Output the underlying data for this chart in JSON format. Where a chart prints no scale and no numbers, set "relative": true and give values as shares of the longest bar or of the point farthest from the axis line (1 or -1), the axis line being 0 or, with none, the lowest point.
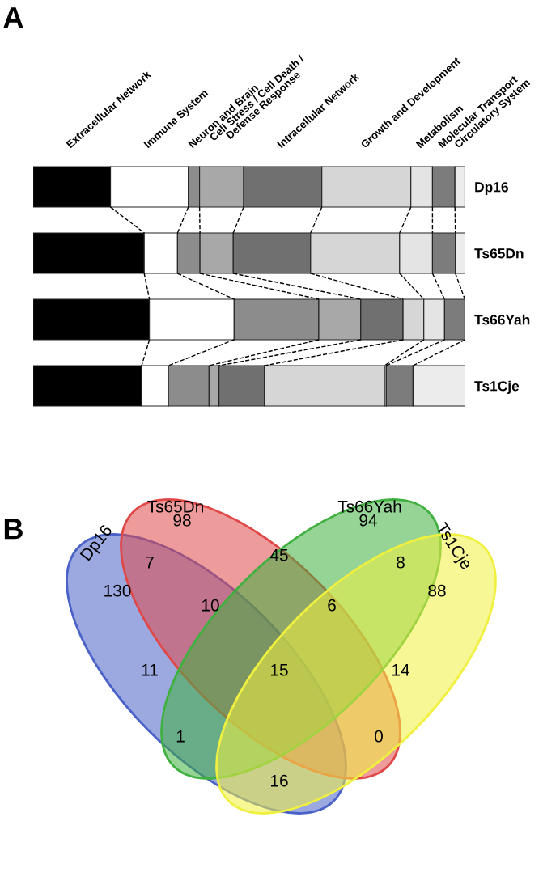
{
  "chart_data": [
    {
      "type": "bar",
      "title": "A",
      "orientation": "horizontal",
      "stacked": true,
      "relative": true,
      "legend": false,
      "categories": [
        "Dp16",
        "Ts65Dn",
        "Ts66Yah",
        "Ts1Cje"
      ],
      "series": [
        {
          "name": "Extracellular Network",
          "color": "#000000",
          "values": [
            0.179,
            0.257,
            0.269,
            0.251
          ]
        },
        {
          "name": "Immune System",
          "color": "#ffffff",
          "values": [
            0.18,
            0.077,
            0.196,
            0.062
          ]
        },
        {
          "name": "Neuron and Brain",
          "color": "#8c8c8c",
          "values": [
            0.026,
            0.052,
            0.196,
            0.094
          ]
        },
        {
          "name": "Cell Stress / Cell Death /\nDefense Response",
          "color": "#a8a8a8",
          "values": [
            0.102,
            0.077,
            0.097,
            0.023
          ]
        },
        {
          "name": "Intracellular Network",
          "color": "#707070",
          "values": [
            0.181,
            0.179,
            0.098,
            0.105
          ]
        },
        {
          "name": "Growth and Development",
          "color": "#d6d6d6",
          "values": [
            0.206,
            0.206,
            0.048,
            0.278
          ]
        },
        {
          "name": "Metabolism",
          "color": "#e4e4e4",
          "values": [
            0.05,
            0.076,
            0.048,
            0.004
          ]
        },
        {
          "name": "Molecular Transport",
          "color": "#7c7c7c",
          "values": [
            0.052,
            0.053,
            0.047,
            0.062
          ]
        },
        {
          "name": "Circulatory System",
          "color": "#ececec",
          "values": [
            0.023,
            0.023,
            0.0,
            0.121
          ]
        }
      ]
    },
    {
      "type": "other",
      "title": "B",
      "colors": [
        "#4a62c8",
        "#e04848",
        "#40b040",
        "#f0f040"
      ],
      "annotations": [
        "Dp16",
        "Ts65Dn",
        "Ts66Yah",
        "Ts1Cje",
        "130",
        "98",
        "94",
        "88",
        "7",
        "45",
        "8",
        "10",
        "6",
        "11",
        "15",
        "14",
        "1",
        "0",
        "16"
      ]
    }
  ]
}
